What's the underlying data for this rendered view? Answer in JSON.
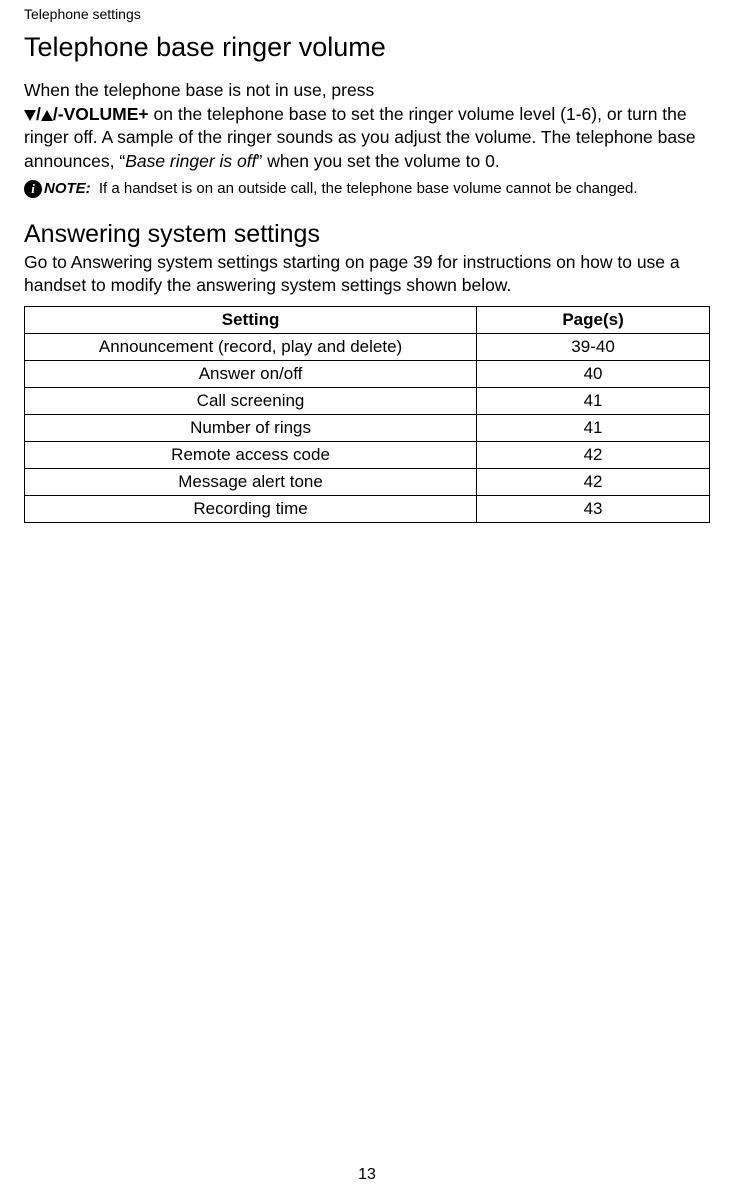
{
  "header": "Telephone settings",
  "title": "Telephone base ringer volume",
  "para1_part1": "When the telephone base is not in use, press",
  "volume_control_label": "/-VOLUME+",
  "para1_part2": " on the telephone base to set the ringer volume level (1-6), or turn the ringer off. A sample of the ringer sounds as you adjust the volume. The telephone base announces, “",
  "para1_italic": "Base ringer is off",
  "para1_part3": "” when you set the volume to 0.",
  "note_label": "NOTE:",
  "note_text": " If a handset is on an outside call, the telephone base volume cannot be changed.",
  "section2_title": "Answering system settings",
  "section2_text": "Go to Answering system settings starting on page 39 for instructions on how to use a handset to modify the answering system settings shown below.",
  "table": {
    "columns": [
      "Setting",
      "Page(s)"
    ],
    "rows": [
      [
        "Announcement (record, play and delete)",
        "39-40"
      ],
      [
        "Answer on/off",
        "40"
      ],
      [
        "Call screening",
        "41"
      ],
      [
        "Number of rings",
        "41"
      ],
      [
        "Remote access code",
        "42"
      ],
      [
        "Message alert tone",
        "42"
      ],
      [
        "Recording time",
        "43"
      ]
    ]
  },
  "page_number": "13"
}
